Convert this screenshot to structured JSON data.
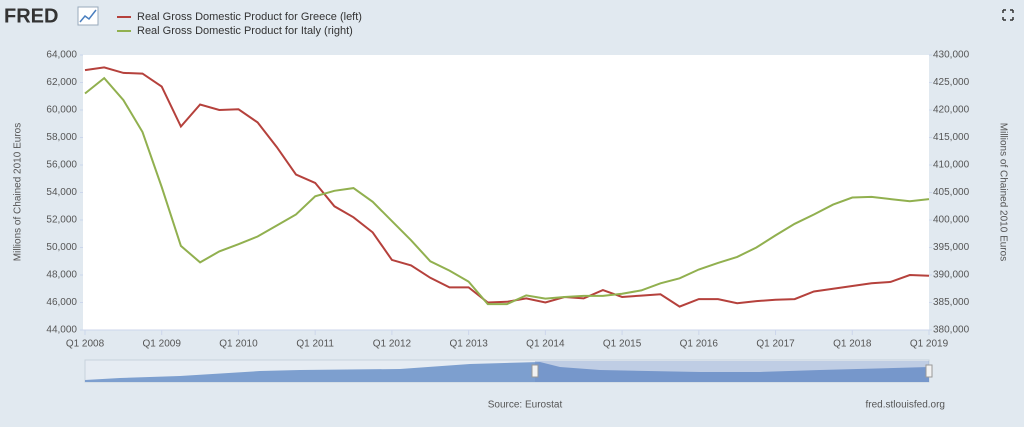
{
  "chart_data": {
    "type": "line",
    "logo": "FRED",
    "y_label": "Millions of Chained 2010 Euros",
    "y2_label": "Millions of Chained 2010 Euros",
    "source": "Source: Eurostat",
    "credit": "fred.stlouisfed.org",
    "categories": [
      "Q1 2008",
      null,
      null,
      null,
      "Q1 2009",
      null,
      null,
      null,
      "Q1 2010",
      null,
      null,
      null,
      "Q1 2011",
      null,
      null,
      null,
      "Q1 2012",
      null,
      null,
      null,
      "Q1 2013",
      null,
      null,
      null,
      "Q1 2014",
      null,
      null,
      null,
      "Q1 2015",
      null,
      null,
      null,
      "Q1 2016",
      null,
      null,
      null,
      "Q1 2017",
      null,
      null,
      null,
      "Q1 2018",
      null,
      null,
      null,
      "Q1 2019"
    ],
    "series": [
      {
        "name": "Real Gross Domestic Product for Greece (left)",
        "color": "#b5413c",
        "axis": "y",
        "values": [
          62900,
          63100,
          62700,
          62650,
          61700,
          58800,
          60400,
          60000,
          60050,
          59100,
          57300,
          55300,
          54700,
          53000,
          52200,
          51100,
          49100,
          48700,
          47800,
          47100,
          47100,
          46000,
          46050,
          46300,
          46000,
          46400,
          46300,
          46900,
          46400,
          46500,
          46600,
          45700,
          46250,
          46250,
          45950,
          46100,
          46200,
          46250,
          46800,
          47000,
          47200,
          47400,
          47500,
          48000,
          47950
        ]
      },
      {
        "name": "Real Gross Domestic Product for Italy (right)",
        "color": "#91b04f",
        "axis": "y2",
        "values": [
          423000,
          425800,
          421800,
          416000,
          406000,
          395300,
          392300,
          394300,
          395600,
          397000,
          399000,
          401000,
          404300,
          405300,
          405800,
          403300,
          399800,
          396300,
          392500,
          390800,
          388800,
          384700,
          384700,
          386300,
          385700,
          386000,
          386200,
          386200,
          386600,
          387200,
          388500,
          389400,
          391000,
          392200,
          393300,
          395000,
          397200,
          399300,
          401000,
          402800,
          404100,
          404200,
          403800,
          403400,
          403800
        ]
      }
    ],
    "ylim": [
      44000,
      64000
    ],
    "yticks": [
      {
        "value": 44000,
        "label": "44,000"
      },
      {
        "value": 46000,
        "label": "46,000"
      },
      {
        "value": 48000,
        "label": "48,000"
      },
      {
        "value": 50000,
        "label": "50,000"
      },
      {
        "value": 52000,
        "label": "52,000"
      },
      {
        "value": 54000,
        "label": "54,000"
      },
      {
        "value": 56000,
        "label": "56,000"
      },
      {
        "value": 58000,
        "label": "58,000"
      },
      {
        "value": 60000,
        "label": "60,000"
      },
      {
        "value": 62000,
        "label": "62,000"
      },
      {
        "value": 64000,
        "label": "64,000"
      }
    ],
    "y2lim": [
      380000,
      430000
    ],
    "y2ticks": [
      {
        "value": 380000,
        "label": "380,000"
      },
      {
        "value": 385000,
        "label": "385,000"
      },
      {
        "value": 390000,
        "label": "390,000"
      },
      {
        "value": 395000,
        "label": "395,000"
      },
      {
        "value": 400000,
        "label": "400,000"
      },
      {
        "value": 405000,
        "label": "405,000"
      },
      {
        "value": 410000,
        "label": "410,000"
      },
      {
        "value": 415000,
        "label": "415,000"
      },
      {
        "value": 420000,
        "label": "420,000"
      },
      {
        "value": 425000,
        "label": "425,000"
      },
      {
        "value": 430000,
        "label": "430,000"
      }
    ],
    "grid": false
  }
}
